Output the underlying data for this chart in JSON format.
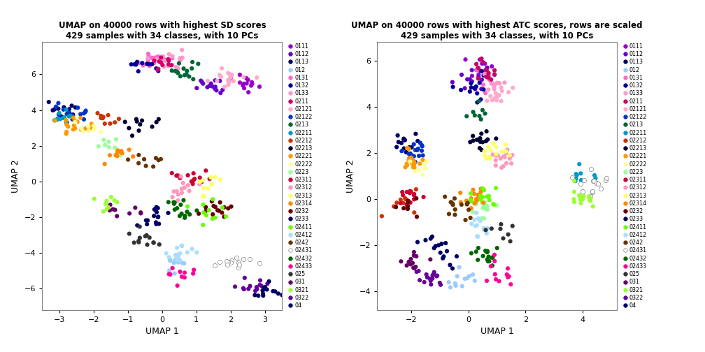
{
  "title1": "UMAP on 40000 rows with highest SD scores\n429 samples with 34 classes, with 10 PCs",
  "title2": "UMAP on 40000 rows with highest ATC scores, rows are scaled\n429 samples with 34 classes, with 10 PCs",
  "xlabel": "UMAP 1",
  "ylabel": "UMAP 2",
  "classes": [
    "0111",
    "0112",
    "0113",
    "012",
    "0131",
    "0132",
    "0133",
    "0211",
    "02121",
    "02122",
    "0213",
    "02211",
    "02212",
    "02213",
    "02221",
    "02222",
    "0223",
    "02311",
    "02312",
    "02313",
    "02314",
    "0232",
    "0233",
    "02411",
    "02412",
    "0242",
    "02431",
    "02432",
    "02433",
    "025",
    "031",
    "0321",
    "0322",
    "04"
  ],
  "color_map": {
    "0111": "#9900CC",
    "0112": "#6600CC",
    "0113": "#000066",
    "012": "#99CCFF",
    "0131": "#FF66CC",
    "0132": "#000099",
    "0133": "#FF99CC",
    "0211": "#CC0066",
    "02121": "#FFAACC",
    "02122": "#0033CC",
    "0213": "#006633",
    "02211": "#0099CC",
    "02212": "#CC3300",
    "02213": "#000033",
    "02221": "#FF9900",
    "02222": "#FFFF99",
    "0223": "#99FF99",
    "02311": "#CC0033",
    "02312": "#FF99BB",
    "02313": "#FFFF66",
    "02314": "#FF8800",
    "0232": "#660000",
    "0233": "#000066",
    "02411": "#66FF00",
    "02412": "#AADDFF",
    "0242": "#663300",
    "02431": "#FFFFFF",
    "02432": "#006600",
    "02433": "#FF0099",
    "025": "#333333",
    "031": "#660066",
    "0321": "#99FF33",
    "0322": "#660099",
    "04": "#000066"
  },
  "plot1_xlim": [
    -3.5,
    3.5
  ],
  "plot1_ylim": [
    -7.2,
    7.8
  ],
  "plot1_xticks": [
    -3,
    -2,
    -1,
    0,
    1,
    2,
    3
  ],
  "plot1_yticks": [
    -6,
    -4,
    -2,
    0,
    2,
    4,
    6
  ],
  "plot2_xlim": [
    -3.2,
    5.2
  ],
  "plot2_ylim": [
    -4.8,
    6.8
  ],
  "plot2_xticks": [
    -2,
    0,
    2,
    4
  ],
  "plot2_yticks": [
    -4,
    -2,
    0,
    2,
    4,
    6
  ],
  "background_color": "#FFFFFF",
  "point_size": 20
}
